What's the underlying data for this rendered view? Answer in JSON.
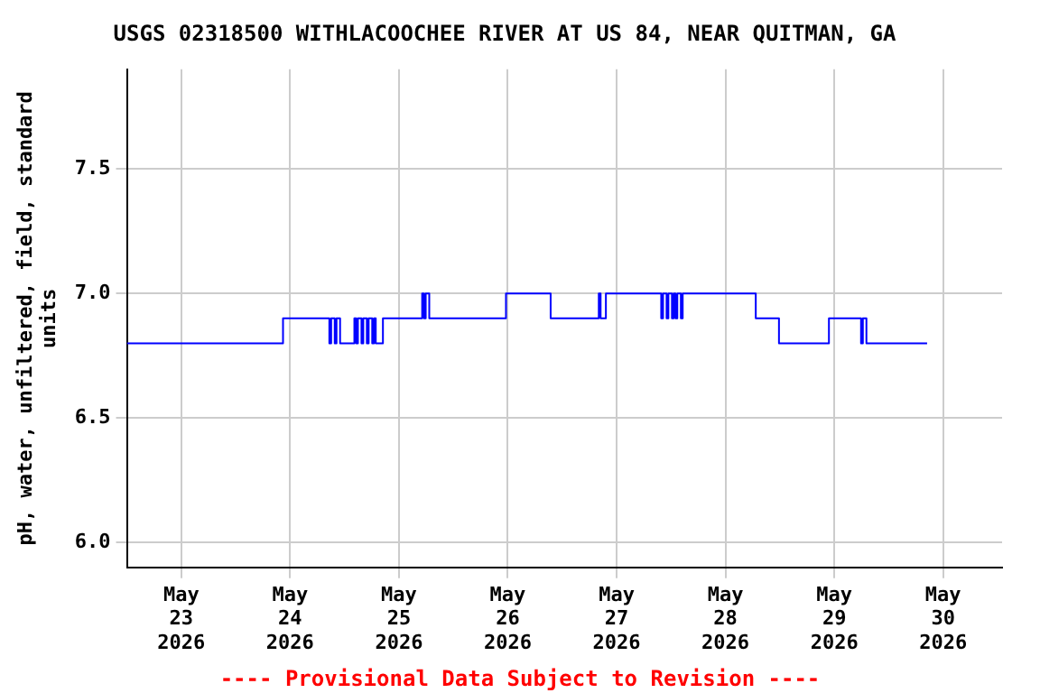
{
  "chart_data": {
    "type": "step",
    "title": "USGS 02318500 WITHLACOOCHEE RIVER AT US 84, NEAR QUITMAN, GA",
    "ylabel": "pH, water, unfiltered, field, standard units",
    "annotations": [
      "---- Provisional Data Subject to Revision ----"
    ],
    "x": [
      "2026-05-22T12:00",
      "2026-05-23T22:26",
      "2026-05-24T08:39",
      "2026-05-24T09:03",
      "2026-05-24T09:50",
      "2026-05-24T10:14",
      "2026-05-24T11:01",
      "2026-05-24T14:10",
      "2026-05-24T14:34",
      "2026-05-24T14:57",
      "2026-05-24T15:44",
      "2026-05-24T16:08",
      "2026-05-24T16:55",
      "2026-05-24T17:19",
      "2026-05-24T18:06",
      "2026-05-24T18:30",
      "2026-05-24T18:53",
      "2026-05-24T20:28",
      "2026-05-25T05:07",
      "2026-05-25T05:31",
      "2026-05-25T05:54",
      "2026-05-25T06:41",
      "2026-05-25T23:36",
      "2026-05-26T09:27",
      "2026-05-26T20:04",
      "2026-05-26T20:28",
      "2026-05-26T21:38",
      "2026-05-27T09:50",
      "2026-05-27T10:14",
      "2026-05-27T11:01",
      "2026-05-27T11:25",
      "2026-05-27T12:12",
      "2026-05-27T12:35",
      "2026-05-27T12:59",
      "2026-05-27T13:23",
      "2026-05-27T14:10",
      "2026-05-27T14:34",
      "2026-05-28T06:41",
      "2026-05-28T11:48",
      "2026-05-28T22:49",
      "2026-05-29T05:54",
      "2026-05-29T06:18",
      "2026-05-29T07:05",
      "2026-05-29T20:28"
    ],
    "series": [
      {
        "color": "#0000ff",
        "values": [
          6.8,
          6.9,
          6.8,
          6.9,
          6.8,
          6.9,
          6.8,
          6.9,
          6.8,
          6.9,
          6.8,
          6.9,
          6.8,
          6.9,
          6.8,
          6.9,
          6.8,
          6.9,
          7.0,
          6.9,
          7.0,
          6.9,
          7.0,
          6.9,
          7.0,
          6.9,
          7.0,
          6.9,
          7.0,
          6.9,
          7.0,
          6.9,
          7.0,
          6.9,
          7.0,
          6.9,
          7.0,
          6.9,
          6.8,
          6.9,
          6.8,
          6.9,
          6.8,
          6.8
        ]
      }
    ],
    "xlim": [
      "2026-05-22T12:00",
      "2026-05-30T13:00"
    ],
    "xticks": [
      {
        "value": "2026-05-23",
        "label": "May\n23\n2026"
      },
      {
        "value": "2026-05-24",
        "label": "May\n24\n2026"
      },
      {
        "value": "2026-05-25",
        "label": "May\n25\n2026"
      },
      {
        "value": "2026-05-26",
        "label": "May\n26\n2026"
      },
      {
        "value": "2026-05-27",
        "label": "May\n27\n2026"
      },
      {
        "value": "2026-05-28",
        "label": "May\n28\n2026"
      },
      {
        "value": "2026-05-29",
        "label": "May\n29\n2026"
      },
      {
        "value": "2026-05-30",
        "label": "May\n30\n2026"
      }
    ],
    "ylim": [
      5.9,
      7.9
    ],
    "yticks": [
      {
        "value": 6.0,
        "label": "6.0"
      },
      {
        "value": 6.5,
        "label": "6.5"
      },
      {
        "value": 7.0,
        "label": "7.0"
      },
      {
        "value": 7.5,
        "label": "7.5"
      }
    ],
    "grid": true,
    "legend": false,
    "marker": "none",
    "line_style": "solid"
  }
}
